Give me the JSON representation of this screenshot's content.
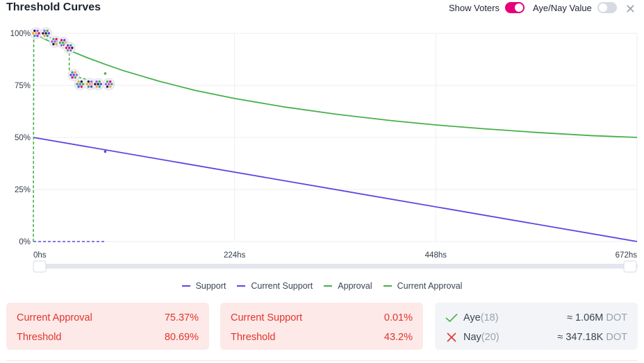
{
  "header": {
    "title": "Threshold Curves",
    "show_voters_label": "Show Voters",
    "show_voters_on": true,
    "aye_nay_label": "Aye/Nay Value",
    "aye_nay_on": false
  },
  "colors": {
    "support": "#5c45e0",
    "approval": "#46b04a",
    "toggle_on": "#e6007a",
    "toggle_off": "#d6dae1",
    "danger": "#e0352c"
  },
  "chart_data": {
    "type": "line",
    "x_ticks": [
      "0hs",
      "224hs",
      "448hs",
      "672hs"
    ],
    "y_ticks": [
      "0%",
      "25%",
      "50%",
      "75%",
      "100%"
    ],
    "xlim": [
      0,
      672
    ],
    "ylim": [
      0,
      100
    ],
    "series": [
      {
        "name": "Support",
        "style": "solid",
        "color": "#5c45e0",
        "points": [
          [
            0,
            50
          ],
          [
            672,
            0
          ]
        ]
      },
      {
        "name": "Current Support",
        "style": "dashed",
        "color": "#5c45e0",
        "points": [
          [
            0,
            0
          ],
          [
            1,
            0.01
          ],
          [
            80,
            0.01
          ]
        ]
      },
      {
        "name": "Approval",
        "style": "solid",
        "color": "#46b04a",
        "points": [
          [
            0,
            100
          ],
          [
            10,
            97.8
          ],
          [
            20,
            95.7
          ],
          [
            40,
            91.8
          ],
          [
            60,
            88.3
          ],
          [
            80,
            85.1
          ],
          [
            100,
            82.1
          ],
          [
            140,
            77.0
          ],
          [
            180,
            72.6
          ],
          [
            224,
            68.7
          ],
          [
            280,
            64.6
          ],
          [
            336,
            61.2
          ],
          [
            400,
            58.0
          ],
          [
            448,
            56.0
          ],
          [
            500,
            54.2
          ],
          [
            560,
            52.4
          ],
          [
            620,
            50.9
          ],
          [
            672,
            50
          ]
        ]
      },
      {
        "name": "Current Approval",
        "style": "dashed",
        "color": "#46b04a",
        "points": [
          [
            0,
            0
          ],
          [
            0.5,
            100
          ],
          [
            5,
            100
          ],
          [
            25,
            97
          ],
          [
            40,
            93.5
          ],
          [
            40,
            82
          ],
          [
            50,
            79
          ],
          [
            80,
            75.37
          ]
        ]
      }
    ],
    "voter_clusters": [
      {
        "x": 3,
        "y": 100
      },
      {
        "x": 14,
        "y": 100
      },
      {
        "x": 24,
        "y": 96
      },
      {
        "x": 33,
        "y": 95.5
      },
      {
        "x": 40,
        "y": 93
      },
      {
        "x": 45,
        "y": 80
      },
      {
        "x": 52,
        "y": 75.6
      },
      {
        "x": 63,
        "y": 75.6
      },
      {
        "x": 72,
        "y": 75.6
      },
      {
        "x": 84,
        "y": 75.6
      }
    ]
  },
  "legend": {
    "items": [
      "Support",
      "Current Support",
      "Approval",
      "Current Approval"
    ]
  },
  "cards": {
    "approval": {
      "current_label": "Current Approval",
      "current_value": "75.37%",
      "threshold_label": "Threshold",
      "threshold_value": "80.69%"
    },
    "support": {
      "current_label": "Current Support",
      "current_value": "0.01%",
      "threshold_label": "Threshold",
      "threshold_value": "43.2%"
    },
    "votes": {
      "aye_label": "Aye",
      "aye_count": "(18)",
      "aye_amount": "≈ 1.06M",
      "aye_unit": "DOT",
      "nay_label": "Nay",
      "nay_count": "(20)",
      "nay_amount": "≈ 347.18K",
      "nay_unit": "DOT"
    }
  }
}
